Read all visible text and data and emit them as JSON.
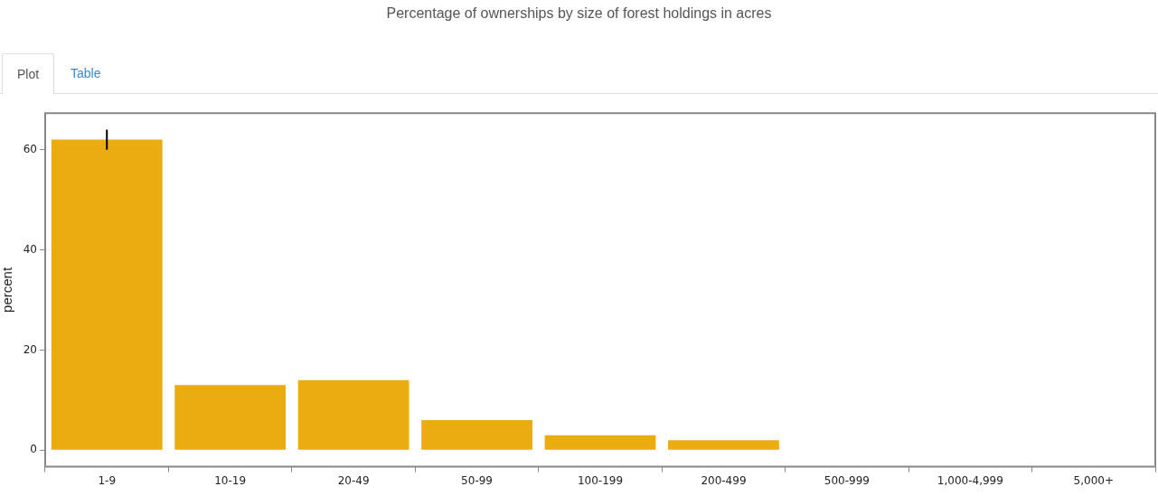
{
  "chart_data": {
    "type": "bar",
    "title": "Percentage of ownerships by size of forest holdings in acres",
    "ylabel": "percent",
    "categories": [
      "1-9",
      "10-19",
      "20-49",
      "50-99",
      "100-199",
      "200-499",
      "500-999",
      "1,000-4,999",
      "5,000+"
    ],
    "values": [
      62,
      13,
      14,
      6,
      3,
      2,
      0,
      0,
      0
    ],
    "errors": [
      2,
      null,
      null,
      null,
      null,
      null,
      null,
      null,
      null
    ],
    "color": "#eaac10",
    "ylim": [
      -3.3,
      67.3
    ],
    "yticks": [
      0,
      20,
      40,
      60
    ],
    "grid": false,
    "legend": false,
    "annotations": [
      "Plot",
      "Table"
    ]
  }
}
